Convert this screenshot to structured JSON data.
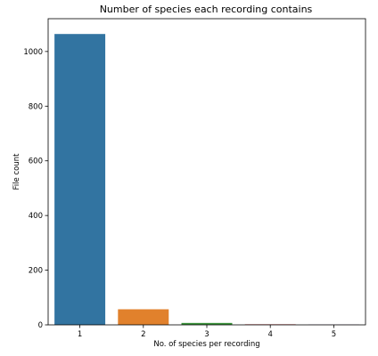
{
  "chart_data": {
    "type": "bar",
    "title": "Number of species each recording contains",
    "xlabel": "No. of species per recording",
    "ylabel": "File count",
    "categories": [
      "1",
      "2",
      "3",
      "4",
      "5"
    ],
    "values": [
      1064,
      57,
      7,
      2,
      1
    ],
    "colors": [
      "#3274a1",
      "#e1812c",
      "#3a923a",
      "#c03d3e",
      "#9372b2"
    ],
    "ylim": [
      0,
      1120
    ],
    "yticks": [
      0,
      200,
      400,
      600,
      800,
      1000
    ],
    "grid": false,
    "legend": "none"
  }
}
